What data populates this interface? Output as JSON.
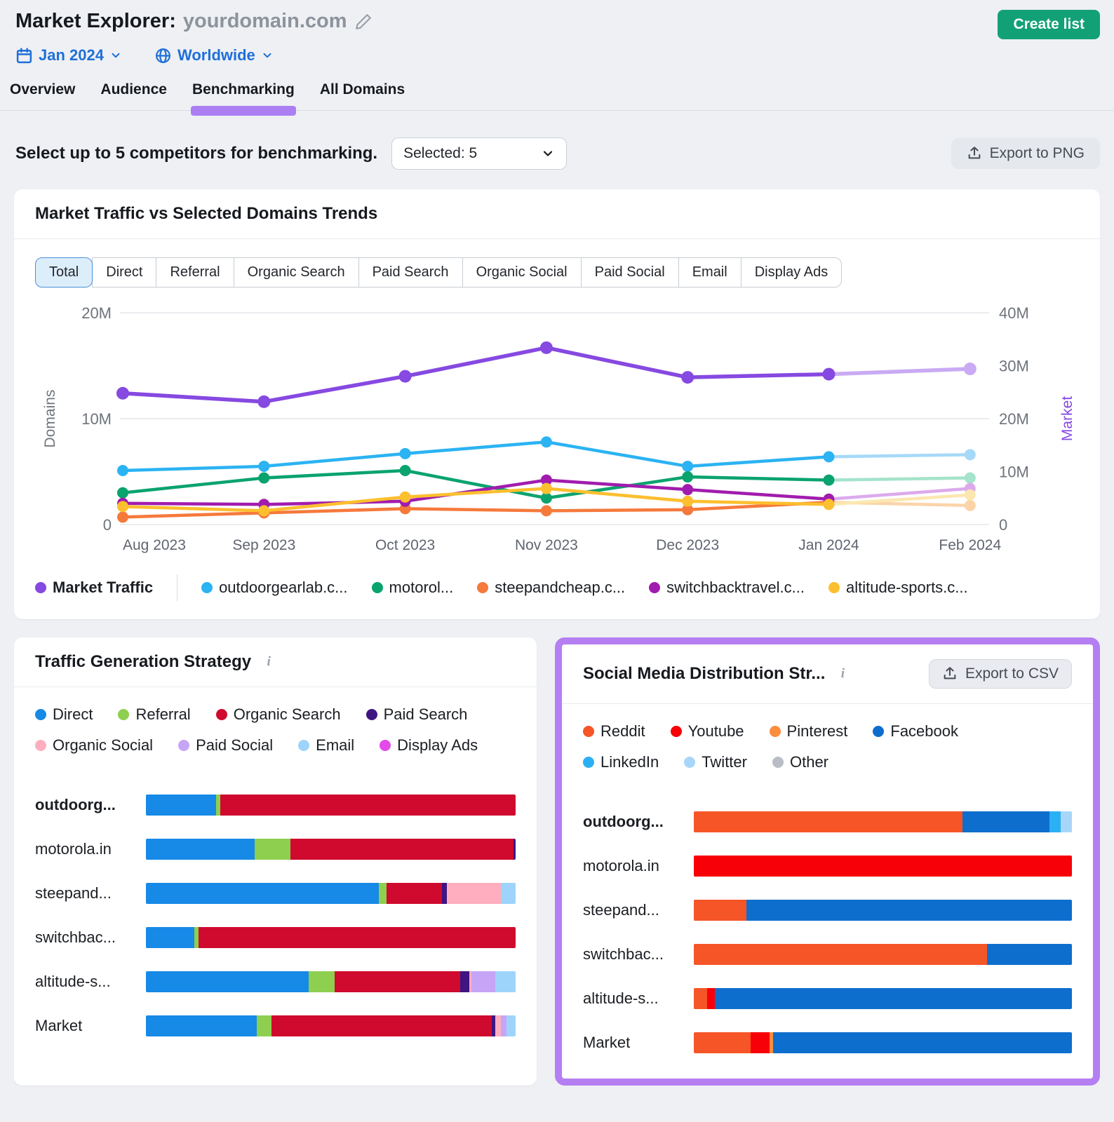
{
  "header": {
    "title_prefix": "Market Explorer:",
    "title_domain": "yourdomain.com",
    "date_label": "Jan 2024",
    "region_label": "Worldwide",
    "create_list_label": "Create list",
    "tabs": [
      {
        "label": "Overview",
        "active": false
      },
      {
        "label": "Audience",
        "active": false
      },
      {
        "label": "Benchmarking",
        "active": true
      },
      {
        "label": "All Domains",
        "active": false
      }
    ]
  },
  "controls": {
    "select_text": "Select up to 5 competitors for benchmarking.",
    "selected_label": "Selected: 5",
    "export_png_label": "Export to PNG"
  },
  "trends_card": {
    "title": "Market Traffic vs Selected Domains Trends",
    "filter_tabs": [
      "Total",
      "Direct",
      "Referral",
      "Organic Search",
      "Paid Search",
      "Organic Social",
      "Paid Social",
      "Email",
      "Display Ads"
    ],
    "active_filter": "Total"
  },
  "chart_data": {
    "type": "line",
    "x": [
      "Aug 2023",
      "Sep 2023",
      "Oct 2023",
      "Nov 2023",
      "Dec 2023",
      "Jan 2024",
      "Feb 2024"
    ],
    "left_axis": {
      "title": "Domains",
      "unit": "M",
      "max": 20,
      "ticks": [
        {
          "label": "20M",
          "v": 20
        },
        {
          "label": "10M",
          "v": 10
        },
        {
          "label": "0",
          "v": 0
        }
      ]
    },
    "right_axis": {
      "title": "Market",
      "unit": "M",
      "max": 40,
      "color": "#8649e1",
      "ticks": [
        {
          "label": "40M",
          "v": 40
        },
        {
          "label": "30M",
          "v": 30
        },
        {
          "label": "20M",
          "v": 20
        },
        {
          "label": "10M",
          "v": 10
        },
        {
          "label": "0",
          "v": 0
        }
      ]
    },
    "forecast_from_index": 5,
    "series": [
      {
        "name": "Market Traffic",
        "axis": "right",
        "main": true,
        "color": "#8649e1",
        "light_color": "#c9aaf3",
        "values_m": [
          24.8,
          23.2,
          28.0,
          33.4,
          27.8,
          28.4,
          29.4
        ]
      },
      {
        "name": "outdoorgearlab.c...",
        "axis": "left",
        "main": false,
        "color": "#2bb3f3",
        "light_color": "#a6d9f8",
        "values_m": [
          5.1,
          5.5,
          6.7,
          7.8,
          5.5,
          6.4,
          6.6
        ]
      },
      {
        "name": "motorol...",
        "axis": "left",
        "main": false,
        "color": "#0aa36e",
        "light_color": "#a5e3cb",
        "values_m": [
          3.0,
          4.4,
          5.1,
          2.5,
          4.5,
          4.2,
          4.4
        ]
      },
      {
        "name": "steepandcheap.c...",
        "axis": "left",
        "main": false,
        "color": "#f5793b",
        "light_color": "#fbd4a9",
        "values_m": [
          0.7,
          1.1,
          1.5,
          1.3,
          1.4,
          2.1,
          1.8
        ]
      },
      {
        "name": "switchbacktravel.c...",
        "axis": "left",
        "main": false,
        "color": "#a11cae",
        "light_color": "#dcaaec",
        "values_m": [
          2.0,
          1.9,
          2.2,
          4.2,
          3.3,
          2.4,
          3.4
        ]
      },
      {
        "name": "altitude-sports.c...",
        "axis": "left",
        "main": false,
        "color": "#fcbf2e",
        "light_color": "#fbe7af",
        "values_m": [
          1.7,
          1.3,
          2.6,
          3.4,
          2.2,
          1.9,
          2.8
        ]
      }
    ]
  },
  "traffic_card": {
    "title": "Traffic Generation Strategy",
    "legend": [
      {
        "label": "Direct",
        "color": "#1789e6"
      },
      {
        "label": "Referral",
        "color": "#8ecf4f"
      },
      {
        "label": "Organic Search",
        "color": "#cf0a2e"
      },
      {
        "label": "Paid Search",
        "color": "#3f1582"
      },
      {
        "label": "Organic Social",
        "color": "#ffaebf"
      },
      {
        "label": "Paid Social",
        "color": "#c7a5f6"
      },
      {
        "label": "Email",
        "color": "#9ed4fb"
      },
      {
        "label": "Display Ads",
        "color": "#e44ae9"
      }
    ],
    "legend_rows": [
      4,
      4
    ],
    "rows": [
      {
        "label": "outdoorg...",
        "bold": true,
        "values": {
          "Direct": 19,
          "Referral": 1.2,
          "Organic Search": 79.8
        }
      },
      {
        "label": "motorola.in",
        "bold": false,
        "values": {
          "Direct": 29.5,
          "Referral": 9.5,
          "Organic Search": 60.5,
          "Paid Search": 0.5
        }
      },
      {
        "label": "steepand...",
        "bold": false,
        "values": {
          "Direct": 63,
          "Referral": 2,
          "Organic Search": 15,
          "Paid Search": 1.5,
          "Organic Social": 14.5,
          "Email": 4
        }
      },
      {
        "label": "switchbac...",
        "bold": false,
        "values": {
          "Direct": 13,
          "Referral": 1.2,
          "Organic Search": 85.8
        }
      },
      {
        "label": "altitude-s...",
        "bold": false,
        "values": {
          "Direct": 44,
          "Referral": 7,
          "Organic Search": 34,
          "Paid Search": 2.5,
          "Organic Social": 0.5,
          "Paid Social": 6.5,
          "Email": 5.5
        }
      },
      {
        "label": "Market",
        "bold": false,
        "values": {
          "Direct": 30,
          "Referral": 4,
          "Organic Search": 59.5,
          "Paid Search": 1,
          "Organic Social": 1.5,
          "Paid Social": 1.5,
          "Email": 2.5
        }
      }
    ]
  },
  "social_card": {
    "title": "Social Media Distribution Str...",
    "export_csv_label": "Export to CSV",
    "highlight_color": "#b57ef2",
    "legend": [
      {
        "label": "Reddit",
        "color": "#f65527"
      },
      {
        "label": "Youtube",
        "color": "#f70008"
      },
      {
        "label": "Pinterest",
        "color": "#fb8d3d"
      },
      {
        "label": "Facebook",
        "color": "#0e6ecd"
      },
      {
        "label": "LinkedIn",
        "color": "#2cb0f4"
      },
      {
        "label": "Twitter",
        "color": "#a8d6f9"
      },
      {
        "label": "Other",
        "color": "#b9bdc6"
      }
    ],
    "legend_rows": [
      4,
      3
    ],
    "rows": [
      {
        "label": "outdoorg...",
        "bold": true,
        "values": {
          "Reddit": 71,
          "Facebook": 23,
          "LinkedIn": 3,
          "Twitter": 3
        }
      },
      {
        "label": "motorola.in",
        "bold": false,
        "values": {
          "Youtube": 100
        }
      },
      {
        "label": "steepand...",
        "bold": false,
        "values": {
          "Reddit": 14,
          "Facebook": 86
        }
      },
      {
        "label": "switchbac...",
        "bold": false,
        "values": {
          "Reddit": 77.5,
          "Facebook": 22.5
        }
      },
      {
        "label": "altitude-s...",
        "bold": false,
        "values": {
          "Reddit": 3.5,
          "Youtube": 2,
          "Facebook": 94.5
        }
      },
      {
        "label": "Market",
        "bold": false,
        "values": {
          "Reddit": 15,
          "Youtube": 5,
          "Pinterest": 1,
          "Facebook": 79
        }
      }
    ]
  }
}
